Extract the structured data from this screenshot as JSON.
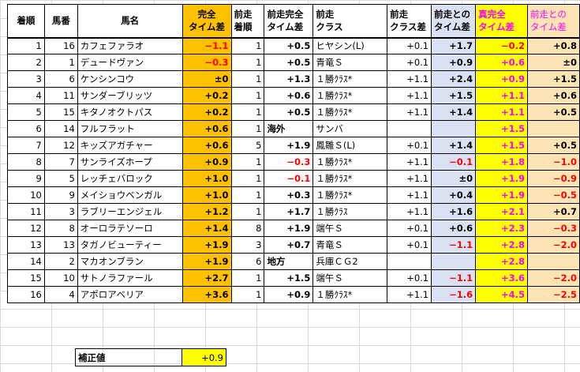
{
  "headers": {
    "order": "着順",
    "horse_no": "馬番",
    "horse_name": "馬名",
    "complete_diff": [
      "完全",
      "タイム差"
    ],
    "prev_order": [
      "前走",
      "着順"
    ],
    "prev_complete_diff": [
      "前走完全",
      "タイム差"
    ],
    "prev_class": [
      "前走",
      "クラス"
    ],
    "prev_class_diff": [
      "前走",
      "クラス差"
    ],
    "prev_time_diff": [
      "前走との",
      "タイム差"
    ],
    "true_complete_diff": [
      "真完全",
      "タイム差"
    ],
    "vs_prev_time_diff": [
      "前走との",
      "タイム差"
    ]
  },
  "rows": [
    {
      "order": "1",
      "no": "16",
      "name": "カフェファラオ",
      "cd": "−1.1",
      "cd_neg": true,
      "po": "1",
      "pcd": "+0.5",
      "pcd_neg": false,
      "pc": "ヒヤシン(L)",
      "pcl": "+0.1",
      "ptd": "+1.7",
      "ptd_neg": false,
      "tcd": "−0.2",
      "tcd_neg": true,
      "vs": "+0.8",
      "vs_neg": false
    },
    {
      "order": "2",
      "no": "1",
      "name": "デュードヴァン",
      "cd": "−0.3",
      "cd_neg": true,
      "po": "1",
      "pcd": "+0.5",
      "pcd_neg": false,
      "pc": "青竜Ｓ",
      "pcl": "+0.1",
      "ptd": "+0.9",
      "ptd_neg": false,
      "tcd": "+0.6",
      "tcd_neg": false,
      "vs": "±0",
      "vs_neg": false
    },
    {
      "order": "3",
      "no": "6",
      "name": "ケンシンコウ",
      "cd": "±0",
      "cd_neg": false,
      "po": "1",
      "pcd": "+1.3",
      "pcd_neg": false,
      "pc": "１勝ｸﾗｽ*",
      "pcl": "+1.1",
      "ptd": "+2.4",
      "ptd_neg": false,
      "tcd": "+0.9",
      "tcd_neg": false,
      "vs": "+1.5",
      "vs_neg": false
    },
    {
      "order": "4",
      "no": "11",
      "name": "サンダーブリッツ",
      "cd": "+0.2",
      "cd_neg": false,
      "po": "1",
      "pcd": "+0.6",
      "pcd_neg": false,
      "pc": "１勝ｸﾗｽ*",
      "pcl": "+1.1",
      "ptd": "+1.5",
      "ptd_neg": false,
      "tcd": "+1.1",
      "tcd_neg": false,
      "vs": "+0.6",
      "vs_neg": false
    },
    {
      "order": "5",
      "no": "15",
      "name": "キタノオクトパス",
      "cd": "+0.2",
      "cd_neg": false,
      "po": "1",
      "pcd": "+0.5",
      "pcd_neg": false,
      "pc": "１勝ｸﾗｽ*",
      "pcl": "+1.1",
      "ptd": "+1.4",
      "ptd_neg": false,
      "tcd": "+1.1",
      "tcd_neg": false,
      "vs": "+0.5",
      "vs_neg": false
    },
    {
      "order": "6",
      "no": "14",
      "name": "フルフラット",
      "cd": "+0.6",
      "cd_neg": false,
      "po": "1",
      "pcd": "海外",
      "pcd_neg": false,
      "pcd_text": true,
      "pc": "サンバ",
      "pcl": "",
      "ptd": "",
      "ptd_neg": false,
      "tcd": "+1.5",
      "tcd_neg": false,
      "vs": "",
      "vs_neg": false
    },
    {
      "order": "7",
      "no": "12",
      "name": "キッズアガチャー",
      "cd": "+0.6",
      "cd_neg": false,
      "po": "5",
      "pcd": "+1.9",
      "pcd_neg": false,
      "pc": "鳳雛Ｓ(L)",
      "pcl": "+0.1",
      "ptd": "+1.4",
      "ptd_neg": false,
      "tcd": "+1.5",
      "tcd_neg": false,
      "vs": "+0.5",
      "vs_neg": false
    },
    {
      "order": "8",
      "no": "7",
      "name": "サンライズホープ",
      "cd": "+0.9",
      "cd_neg": false,
      "po": "1",
      "pcd": "−0.3",
      "pcd_neg": true,
      "pc": "１勝ｸﾗｽ*",
      "pcl": "+1.1",
      "ptd": "−0.1",
      "ptd_neg": true,
      "tcd": "+1.8",
      "tcd_neg": false,
      "vs": "−1.0",
      "vs_neg": true
    },
    {
      "order": "9",
      "no": "5",
      "name": "レッチェバロック",
      "cd": "+1.0",
      "cd_neg": false,
      "po": "1",
      "pcd": "−0.1",
      "pcd_neg": true,
      "pc": "１勝ｸﾗｽ*",
      "pcl": "+1.1",
      "ptd": "±0",
      "ptd_neg": false,
      "tcd": "+1.9",
      "tcd_neg": false,
      "vs": "−0.9",
      "vs_neg": true
    },
    {
      "order": "10",
      "no": "9",
      "name": "メイショウベンガル",
      "cd": "+1.0",
      "cd_neg": false,
      "po": "1",
      "pcd": "+0.3",
      "pcd_neg": false,
      "pc": "１勝ｸﾗｽ*",
      "pcl": "+1.1",
      "ptd": "+0.4",
      "ptd_neg": false,
      "tcd": "+1.9",
      "tcd_neg": false,
      "vs": "−0.5",
      "vs_neg": true
    },
    {
      "order": "11",
      "no": "3",
      "name": "ラブリーエンジェル",
      "cd": "+1.2",
      "cd_neg": false,
      "po": "1",
      "pcd": "+1.7",
      "pcd_neg": false,
      "pc": "１勝ｸﾗｽ",
      "pcl": "+1.1",
      "ptd": "+1.6",
      "ptd_neg": false,
      "tcd": "+2.1",
      "tcd_neg": false,
      "vs": "+0.7",
      "vs_neg": false
    },
    {
      "order": "12",
      "no": "8",
      "name": "オーロラテソーロ",
      "cd": "+1.4",
      "cd_neg": false,
      "po": "8",
      "pcd": "+1.9",
      "pcd_neg": false,
      "pc": "端午Ｓ",
      "pcl": "+0.1",
      "ptd": "+0.6",
      "ptd_neg": false,
      "tcd": "+2.3",
      "tcd_neg": false,
      "vs": "−0.3",
      "vs_neg": true
    },
    {
      "order": "13",
      "no": "13",
      "name": "タガノビューティー",
      "cd": "+1.9",
      "cd_neg": false,
      "po": "3",
      "pcd": "+0.7",
      "pcd_neg": false,
      "pc": "青竜Ｓ",
      "pcl": "+0.1",
      "ptd": "−1.1",
      "ptd_neg": true,
      "tcd": "+2.8",
      "tcd_neg": false,
      "vs": "−2.0",
      "vs_neg": true
    },
    {
      "order": "14",
      "no": "2",
      "name": "マカオンブラン",
      "cd": "+1.9",
      "cd_neg": false,
      "po": "6",
      "pcd": "地方",
      "pcd_neg": false,
      "pcd_text": true,
      "pc": "兵庫ＣＧ2",
      "pcl": "",
      "ptd": "",
      "ptd_neg": false,
      "tcd": "+2.8",
      "tcd_neg": false,
      "vs": "",
      "vs_neg": false
    },
    {
      "order": "15",
      "no": "10",
      "name": "サトノラファール",
      "cd": "+2.7",
      "cd_neg": false,
      "po": "1",
      "pcd": "+1.5",
      "pcd_neg": false,
      "pc": "端午Ｓ",
      "pcl": "+0.1",
      "ptd": "−1.1",
      "ptd_neg": true,
      "tcd": "+3.6",
      "tcd_neg": false,
      "vs": "−2.0",
      "vs_neg": true
    },
    {
      "order": "16",
      "no": "4",
      "name": "アポロアベリア",
      "cd": "+3.6",
      "cd_neg": false,
      "po": "1",
      "pcd": "+0.9",
      "pcd_neg": false,
      "pc": "１勝ｸﾗｽ*",
      "pcl": "+1.1",
      "ptd": "−1.6",
      "ptd_neg": true,
      "tcd": "+4.5",
      "tcd_neg": false,
      "vs": "−2.5",
      "vs_neg": true
    }
  ],
  "correction": {
    "label": "補正値",
    "value": "+0.9"
  }
}
